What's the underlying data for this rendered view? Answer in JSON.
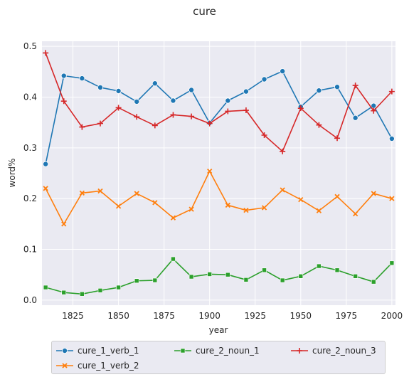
{
  "chart_data": {
    "type": "line",
    "title": "cure",
    "xlabel": "year",
    "ylabel": "word%",
    "xlim": [
      1808,
      2002
    ],
    "ylim": [
      -0.01,
      0.51
    ],
    "xticks": [
      1825,
      1850,
      1875,
      1900,
      1925,
      1950,
      1975,
      2000
    ],
    "yticks": [
      0.0,
      0.1,
      0.2,
      0.3,
      0.4,
      0.5
    ],
    "ytick_labels": [
      "0.0",
      "0.1",
      "0.2",
      "0.3",
      "0.4",
      "0.5"
    ],
    "grid": true,
    "legend_position": "bottom",
    "x": [
      1810,
      1820,
      1830,
      1840,
      1850,
      1860,
      1870,
      1880,
      1890,
      1900,
      1910,
      1920,
      1930,
      1940,
      1950,
      1960,
      1970,
      1980,
      1990,
      2000
    ],
    "series": [
      {
        "name": "cure_1_verb_1",
        "color": "#1f77b4",
        "marker": "circle",
        "values": [
          0.268,
          0.442,
          0.437,
          0.419,
          0.412,
          0.391,
          0.427,
          0.393,
          0.414,
          0.349,
          0.393,
          0.411,
          0.435,
          0.451,
          0.381,
          0.413,
          0.42,
          0.359,
          0.383,
          0.318
        ]
      },
      {
        "name": "cure_1_verb_2",
        "color": "#ff7f0e",
        "marker": "x",
        "values": [
          0.22,
          0.15,
          0.211,
          0.215,
          0.185,
          0.21,
          0.192,
          0.162,
          0.179,
          0.254,
          0.187,
          0.177,
          0.182,
          0.217,
          0.198,
          0.176,
          0.204,
          0.17,
          0.21,
          0.2
        ]
      },
      {
        "name": "cure_2_noun_1",
        "color": "#2ca02c",
        "marker": "square",
        "values": [
          0.025,
          0.015,
          0.012,
          0.019,
          0.025,
          0.038,
          0.039,
          0.081,
          0.046,
          0.051,
          0.05,
          0.04,
          0.059,
          0.039,
          0.047,
          0.067,
          0.059,
          0.047,
          0.036,
          0.073
        ]
      },
      {
        "name": "cure_2_noun_3",
        "color": "#d62728",
        "marker": "plus",
        "values": [
          0.487,
          0.392,
          0.341,
          0.348,
          0.379,
          0.361,
          0.344,
          0.365,
          0.362,
          0.348,
          0.372,
          0.374,
          0.325,
          0.293,
          0.378,
          0.345,
          0.319,
          0.423,
          0.373,
          0.411
        ]
      }
    ]
  }
}
